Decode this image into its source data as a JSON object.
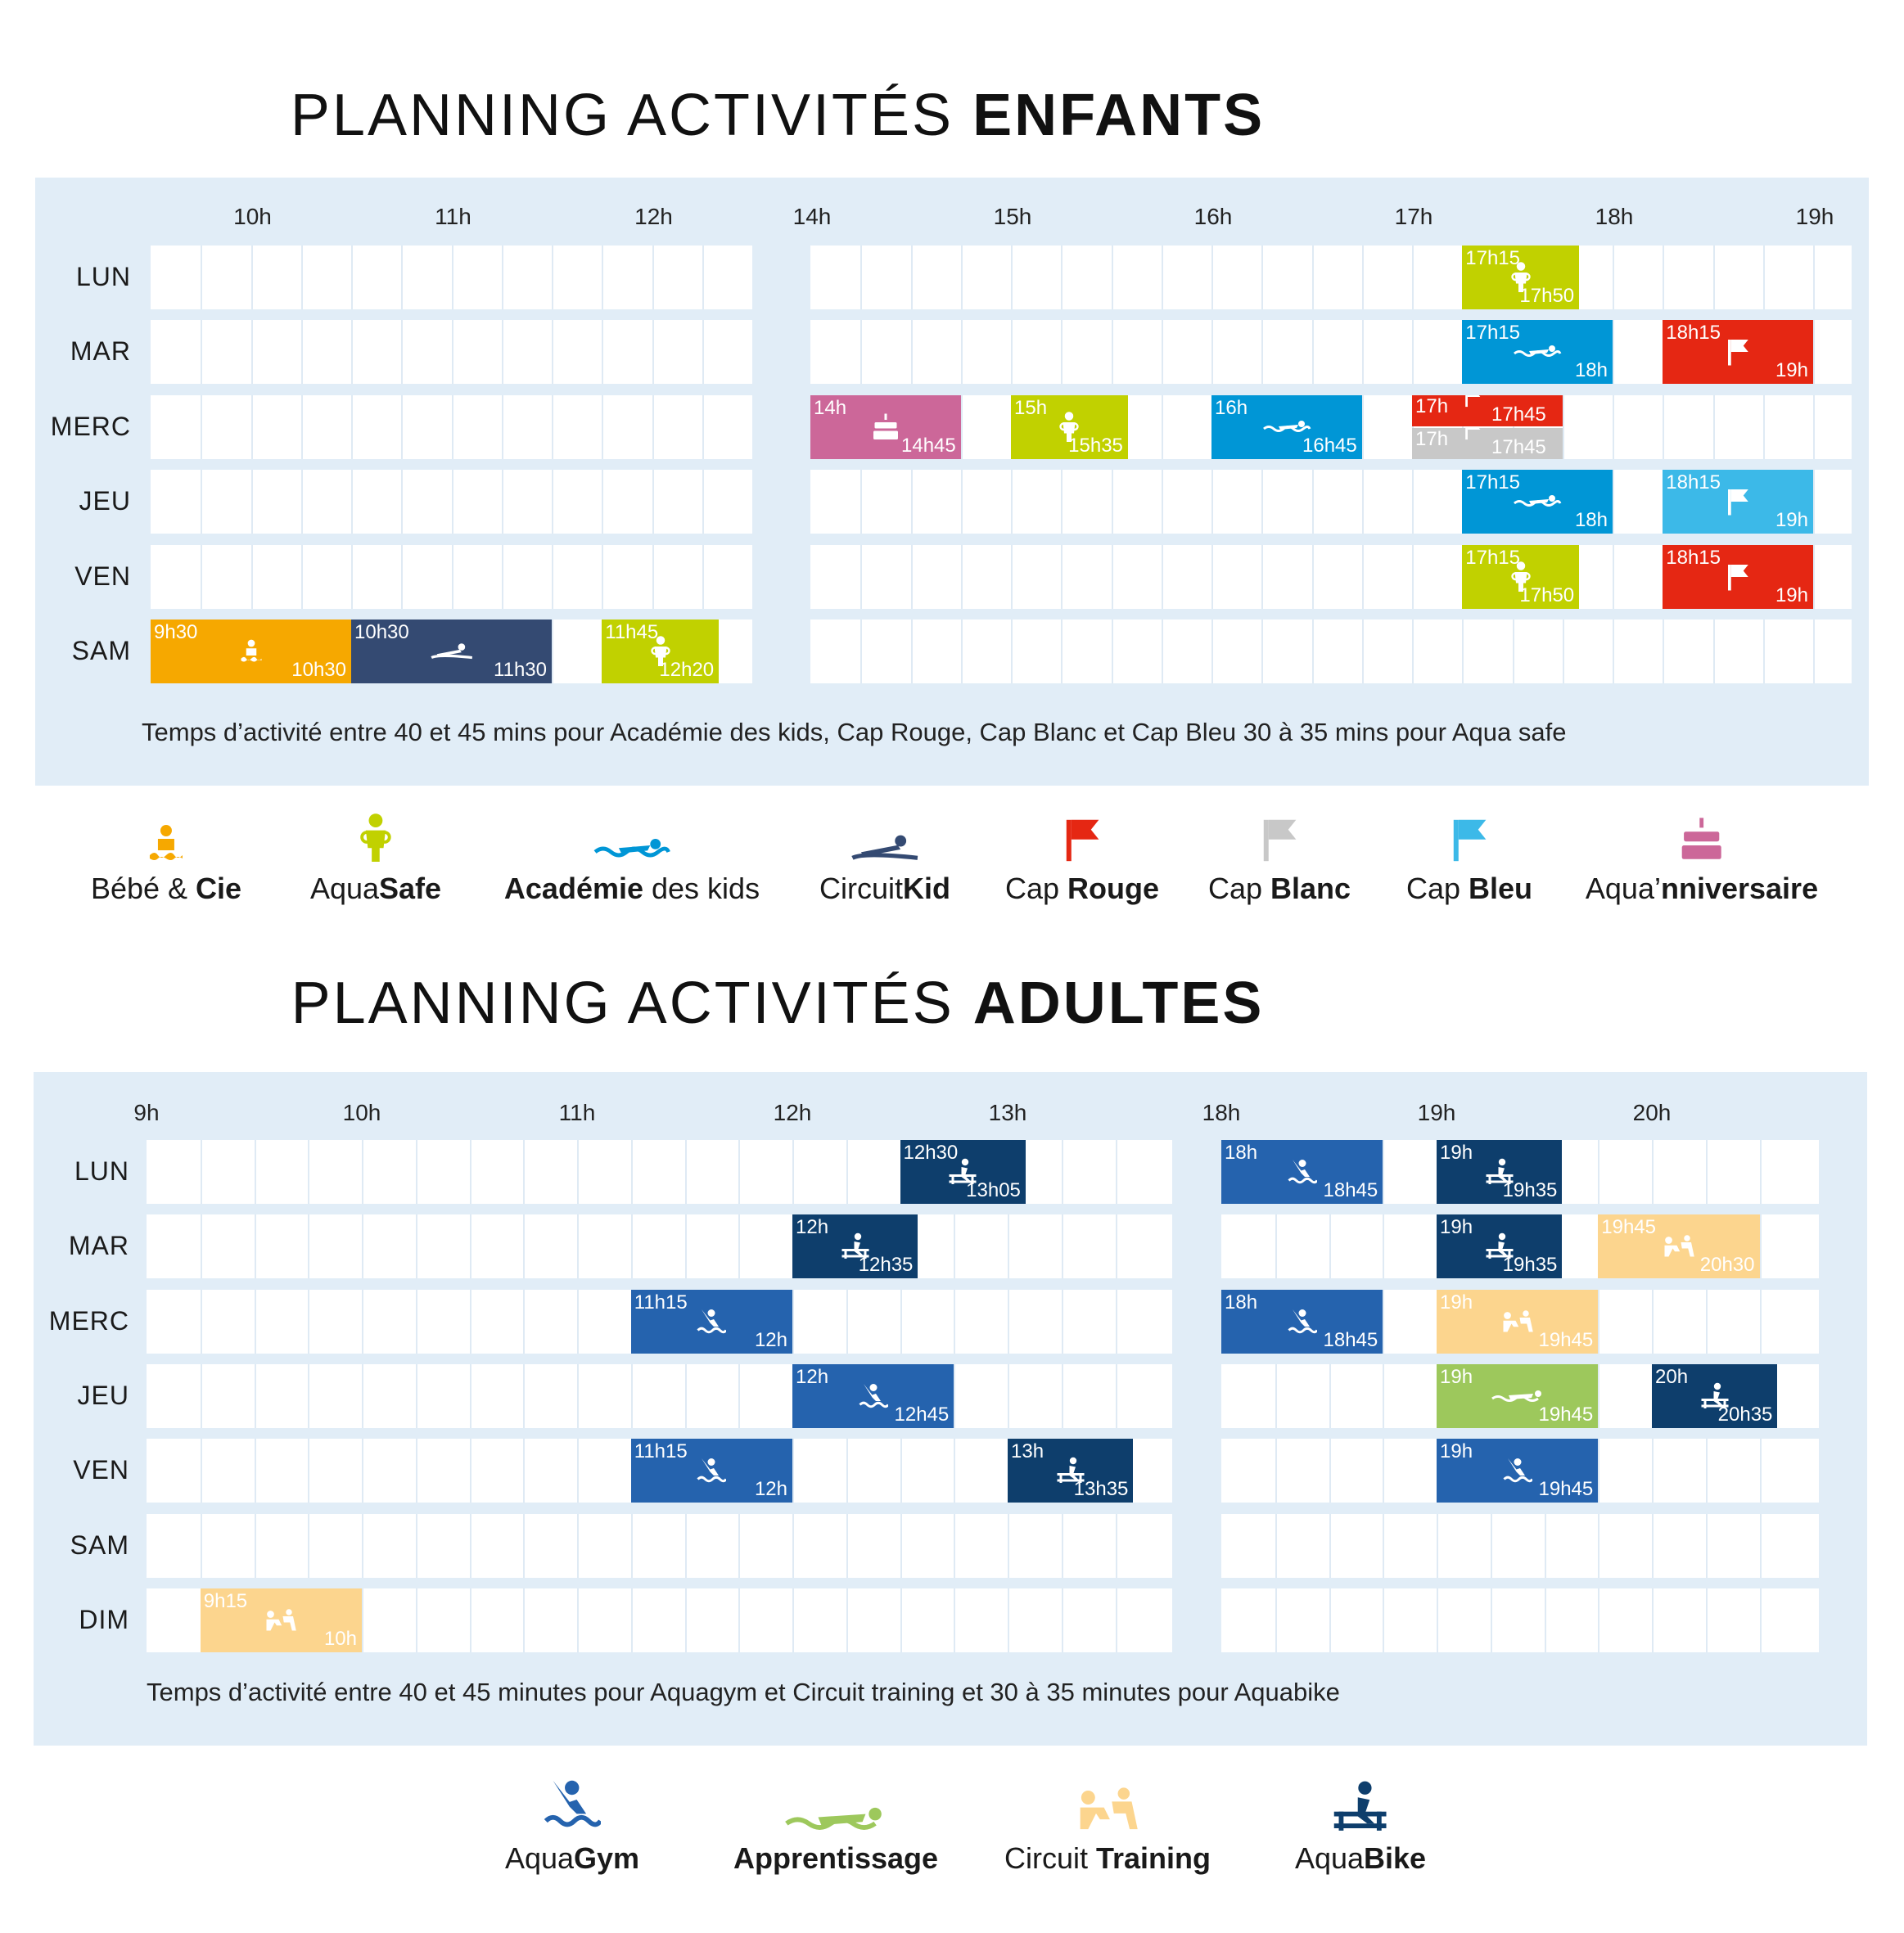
{
  "kids": {
    "title_light": "PLANNING ACTIVITÉS",
    "title_bold": "ENFANTS",
    "hours_left": [
      "10h",
      "11h",
      "12h"
    ],
    "hours_right": [
      "14h",
      "15h",
      "16h",
      "17h",
      "18h",
      "19h"
    ],
    "days": [
      "LUN",
      "MAR",
      "MERC",
      "JEU",
      "VEN",
      "SAM"
    ],
    "note": "Temps d’activité entre 40 et 45 mins pour Académie des kids, Cap Rouge, Cap Blanc et Cap Bleu 30 à 35 mins pour Aqua safe",
    "colors": {
      "bebe": "#f6a800",
      "aquasafe": "#c1d100",
      "academie": "#0096d6",
      "circuitkid": "#344a72",
      "caprouge": "#e52713",
      "capblanc": "#c8c8c8",
      "capbleu": "#3cb9e8",
      "anniv": "#cc6799"
    },
    "sessions": [
      {
        "day": 0,
        "start": "17h15",
        "end": "17h50",
        "type": "aquasafe"
      },
      {
        "day": 1,
        "start": "17h15",
        "end": "18h",
        "type": "academie"
      },
      {
        "day": 1,
        "start": "18h15",
        "end": "19h",
        "type": "caprouge"
      },
      {
        "day": 2,
        "start": "14h",
        "end": "14h45",
        "type": "anniv"
      },
      {
        "day": 2,
        "start": "15h",
        "end": "15h35",
        "type": "aquasafe"
      },
      {
        "day": 2,
        "start": "16h",
        "end": "16h45",
        "type": "academie"
      },
      {
        "day": 2,
        "start": "17h",
        "end": "17h45",
        "type": "caprouge",
        "half": "top"
      },
      {
        "day": 2,
        "start": "17h",
        "end": "17h45",
        "type": "capblanc",
        "half": "bottom"
      },
      {
        "day": 3,
        "start": "17h15",
        "end": "18h",
        "type": "academie"
      },
      {
        "day": 3,
        "start": "18h15",
        "end": "19h",
        "type": "capbleu"
      },
      {
        "day": 4,
        "start": "17h15",
        "end": "17h50",
        "type": "aquasafe"
      },
      {
        "day": 4,
        "start": "18h15",
        "end": "19h",
        "type": "caprouge"
      },
      {
        "day": 5,
        "start": "9h30",
        "end": "10h30",
        "type": "bebe"
      },
      {
        "day": 5,
        "start": "10h30",
        "end": "11h30",
        "type": "circuitkid"
      },
      {
        "day": 5,
        "start": "11h45",
        "end": "12h20",
        "type": "aquasafe"
      }
    ],
    "legend": [
      {
        "type": "bebe",
        "light": "Bébé & ",
        "bold": "Cie",
        "boldFirst": false
      },
      {
        "type": "aquasafe",
        "light": "Aqua",
        "bold": "Safe",
        "boldFirst": false
      },
      {
        "type": "academie",
        "light": " des kids",
        "bold": "Académie",
        "boldFirst": true
      },
      {
        "type": "circuitkid",
        "light": "Circuit",
        "bold": "Kid",
        "boldFirst": false
      },
      {
        "type": "caprouge",
        "light": "Cap ",
        "bold": "Rouge",
        "boldFirst": false
      },
      {
        "type": "capblanc",
        "light": "Cap ",
        "bold": "Blanc",
        "boldFirst": false
      },
      {
        "type": "capbleu",
        "light": "Cap ",
        "bold": "Bleu",
        "boldFirst": false
      },
      {
        "type": "anniv",
        "light": "Aqua’",
        "bold": "nniversaire",
        "boldFirst": false
      }
    ]
  },
  "adults": {
    "title_light": "PLANNING ACTIVITÉS",
    "title_bold": "ADULTES",
    "hours_left": [
      "9h",
      "10h",
      "11h",
      "12h",
      "13h"
    ],
    "hours_right": [
      "18h",
      "19h",
      "20h"
    ],
    "days": [
      "LUN",
      "MAR",
      "MERC",
      "JEU",
      "VEN",
      "SAM",
      "DIM"
    ],
    "note": "Temps d’activité entre 40 et 45 minutes pour Aquagym et Circuit training et 30 à 35 minutes pour Aquabike",
    "colors": {
      "aquagym": "#2563ae",
      "apprentissage": "#9dc85c",
      "circuit": "#fcd58e",
      "aquabike": "#0e3e6c"
    },
    "sessions": [
      {
        "day": 0,
        "start": "12h30",
        "end": "13h05",
        "type": "aquabike"
      },
      {
        "day": 0,
        "start": "18h",
        "end": "18h45",
        "type": "aquagym"
      },
      {
        "day": 0,
        "start": "19h",
        "end": "19h35",
        "type": "aquabike"
      },
      {
        "day": 1,
        "start": "12h",
        "end": "12h35",
        "type": "aquabike"
      },
      {
        "day": 1,
        "start": "19h",
        "end": "19h35",
        "type": "aquabike"
      },
      {
        "day": 1,
        "start": "19h45",
        "end": "20h30",
        "type": "circuit"
      },
      {
        "day": 2,
        "start": "11h15",
        "end": "12h",
        "type": "aquagym"
      },
      {
        "day": 2,
        "start": "18h",
        "end": "18h45",
        "type": "aquagym"
      },
      {
        "day": 2,
        "start": "19h",
        "end": "19h45",
        "type": "circuit"
      },
      {
        "day": 3,
        "start": "12h",
        "end": "12h45",
        "type": "aquagym"
      },
      {
        "day": 3,
        "start": "19h",
        "end": "19h45",
        "type": "apprentissage"
      },
      {
        "day": 3,
        "start": "20h",
        "end": "20h35",
        "type": "aquabike"
      },
      {
        "day": 4,
        "start": "11h15",
        "end": "12h",
        "type": "aquagym"
      },
      {
        "day": 4,
        "start": "13h",
        "end": "13h35",
        "type": "aquabike"
      },
      {
        "day": 4,
        "start": "19h",
        "end": "19h45",
        "type": "aquagym"
      },
      {
        "day": 6,
        "start": "9h15",
        "end": "10h",
        "type": "circuit"
      }
    ],
    "legend": [
      {
        "type": "aquagym",
        "light": "Aqua",
        "bold": "Gym",
        "boldFirst": false
      },
      {
        "type": "apprentissage",
        "light": "",
        "bold": "Apprentissage",
        "boldFirst": true
      },
      {
        "type": "circuit",
        "light": "Circuit ",
        "bold": "Training",
        "boldFirst": false
      },
      {
        "type": "aquabike",
        "light": "Aqua",
        "bold": "Bike",
        "boldFirst": false
      }
    ]
  }
}
